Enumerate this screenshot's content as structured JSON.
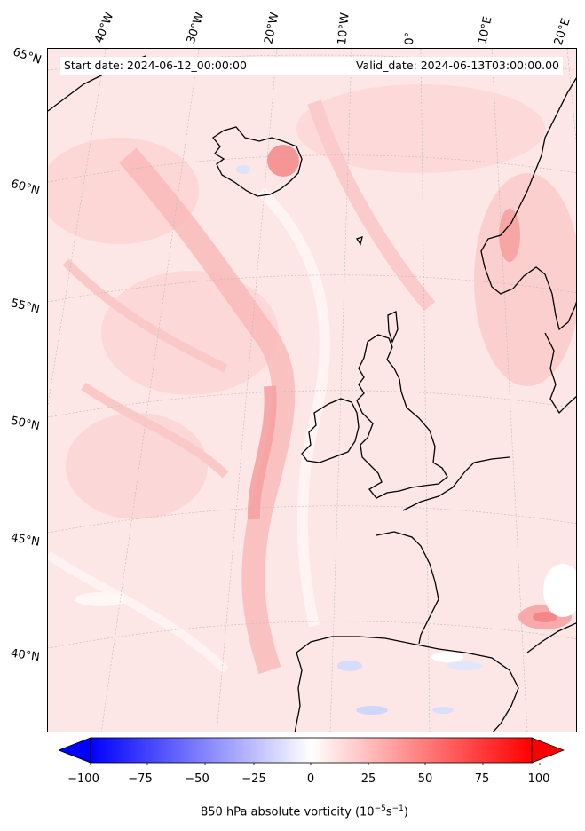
{
  "map": {
    "start_date_label": "Start date: 2024-06-12_00:00:00",
    "valid_date_label": "Valid_date: 2024-06-13T03:00:00.00",
    "longitude_labels": [
      "40°W",
      "30°W",
      "20°W",
      "10°W",
      "0°",
      "10°E",
      "20°E"
    ],
    "latitude_labels": [
      "65°N",
      "60°N",
      "55°N",
      "50°N",
      "45°N",
      "40°N"
    ],
    "field": "850 hPa absolute vorticity",
    "colors": {
      "negative": "#0000ff",
      "zero": "#ffffff",
      "positive": "#ff0000",
      "coastline": "#000000"
    }
  },
  "colorbar": {
    "label": "850 hPa absolute vorticity (10",
    "label_exp1": "−5",
    "label_mid": "s",
    "label_exp2": "−1",
    "label_end": ")",
    "ticks": [
      "−100",
      "−75",
      "−50",
      "−25",
      "0",
      "25",
      "50",
      "75",
      "100"
    ],
    "range": [
      -100,
      100
    ]
  }
}
